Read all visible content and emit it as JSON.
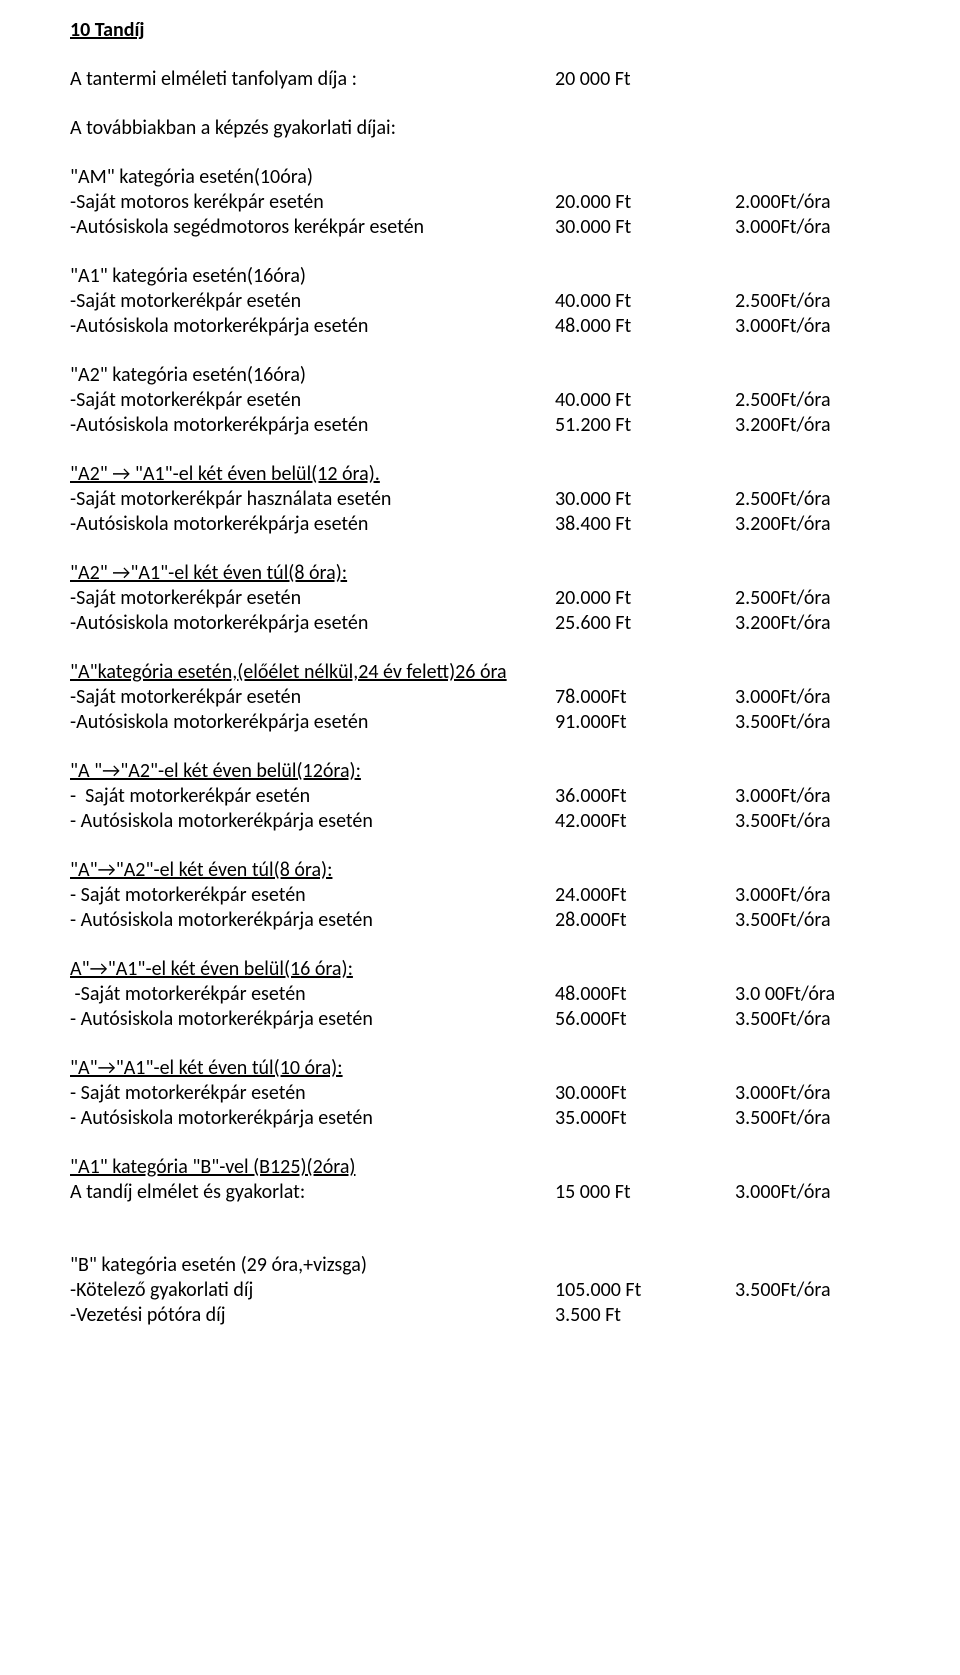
{
  "title": "10 Tandíj",
  "intro_line": {
    "label": "A tantermi  elméleti tanfolyam díja :",
    "v1": "20 000 Ft"
  },
  "subintro": "A továbbiakban a képzés gyakorlati díjai:",
  "blocks": [
    {
      "heading": "\"AM\" kategória esetén(10óra)",
      "heading_underline": false,
      "rows": [
        {
          "label": "-Saját motoros kerékpár esetén",
          "v1": "20.000 Ft",
          "v2": "2.000Ft/óra"
        },
        {
          "label": "-Autósiskola segédmotoros kerékpár esetén",
          "v1": "30.000 Ft",
          "v2": "3.000Ft/óra"
        }
      ]
    },
    {
      "heading": "\"A1\" kategória esetén(16óra)",
      "heading_underline": false,
      "rows": [
        {
          "label": "-Saját motorkerékpár esetén",
          "v1": "40.000 Ft",
          "v2": "2.500Ft/óra"
        },
        {
          "label": "-Autósiskola motorkerékpárja esetén",
          "v1": "48.000 Ft",
          "v2": "3.000Ft/óra"
        }
      ]
    },
    {
      "heading": "\"A2\" kategória esetén(16óra)",
      "heading_underline": false,
      "rows": [
        {
          "label": "-Saját motorkerékpár esetén",
          "v1": "40.000 Ft",
          "v2": "2.500Ft/óra"
        },
        {
          "label": "-Autósiskola motorkerékpárja esetén",
          "v1": "51.200 Ft",
          "v2": "3.200Ft/óra"
        }
      ]
    },
    {
      "heading": "\"A2\" → \"A1\"-el  két éven belül(12 óra).",
      "heading_underline": true,
      "rows": [
        {
          "label": "-Saját motorkerékpár használata esetén",
          "v1": "30.000 Ft",
          "v2": "2.500Ft/óra"
        },
        {
          "label": "-Autósiskola motorkerékpárja esetén",
          "v1": "38.400 Ft",
          "v2": "3.200Ft/óra"
        }
      ]
    },
    {
      "heading": "\"A2\" →\"A1\"-el két éven túl(8 óra):",
      "heading_underline": true,
      "rows": [
        {
          "label": "-Saját motorkerékpár esetén",
          "v1": "20.000 Ft",
          "v2": "2.500Ft/óra"
        },
        {
          "label": "-Autósiskola motorkerékpárja esetén",
          "v1": "25.600 Ft",
          "v2": "3.200Ft/óra"
        }
      ]
    },
    {
      "heading": "\"A\"kategória esetén,(előélet nélkül,24 év felett)26 óra",
      "heading_underline": true,
      "rows": [
        {
          "label": "-Saját motorkerékpár esetén",
          "v1": "78.000Ft",
          "v2": "3.000Ft/óra"
        },
        {
          "label": "-Autósiskola motorkerékpárja esetén",
          "v1": "91.000Ft",
          "v2": "3.500Ft/óra"
        }
      ]
    },
    {
      "heading": "\"A \"→\"A2\"-el két éven belül(12óra):",
      "heading_underline": true,
      "rows": [
        {
          "label": "-  Saját motorkerékpár esetén",
          "v1": "36.000Ft",
          "v2": "3.000Ft/óra"
        },
        {
          "label": "- Autósiskola motorkerékpárja esetén",
          "v1": "42.000Ft",
          "v2": "3.500Ft/óra"
        }
      ]
    },
    {
      "heading": "\"A\"→\"A2\"-el két éven túl(8 óra):",
      "heading_underline": true,
      "rows": [
        {
          "label": "- Saját motorkerékpár esetén",
          "v1": "24.000Ft",
          "v2": "3.000Ft/óra"
        },
        {
          "label": "- Autósiskola motorkerékpárja esetén",
          "v1": "28.000Ft",
          "v2": "3.500Ft/óra"
        }
      ]
    },
    {
      "heading": "A\"→\"A1\"-el két éven belül(16 óra):",
      "heading_underline": true,
      "indent": true,
      "rows": [
        {
          "label": " -Saját motorkerékpár esetén",
          "v1": "48.000Ft",
          "v2": "3.0 00Ft/óra"
        },
        {
          "label": "- Autósiskola motorkerékpárja esetén",
          "v1": "56.000Ft",
          "v2": "3.500Ft/óra"
        }
      ]
    },
    {
      "heading": "\"A\"→\"A1\"-el két éven túl(10 óra):",
      "heading_underline": true,
      "rows": [
        {
          "label": "- Saját motorkerékpár esetén",
          "v1": "30.000Ft",
          "v2": "3.000Ft/óra"
        },
        {
          "label": "- Autósiskola motorkerékpárja esetén",
          "v1": "35.000Ft",
          "v2": "3.500Ft/óra"
        }
      ]
    },
    {
      "heading": "\"A1\" kategória \"B\"-vel (B125)(2óra)",
      "heading_underline": true,
      "rows": [
        {
          "label": "A tandíj elmélet és gyakorlat:",
          "v1": "15 000 Ft",
          "v2": "3.000Ft/óra"
        }
      ]
    },
    {
      "heading": "\"B\" kategória esetén (29 óra,+vizsga)",
      "heading_underline": false,
      "pregap": true,
      "rows": [
        {
          "label": "-Kötelező gyakorlati díj",
          "v1": "105.000 Ft",
          "v2": "3.500Ft/óra"
        },
        {
          "label": "-Vezetési pótóra díj",
          "v1": "3.500 Ft",
          "v2": ""
        }
      ]
    }
  ]
}
